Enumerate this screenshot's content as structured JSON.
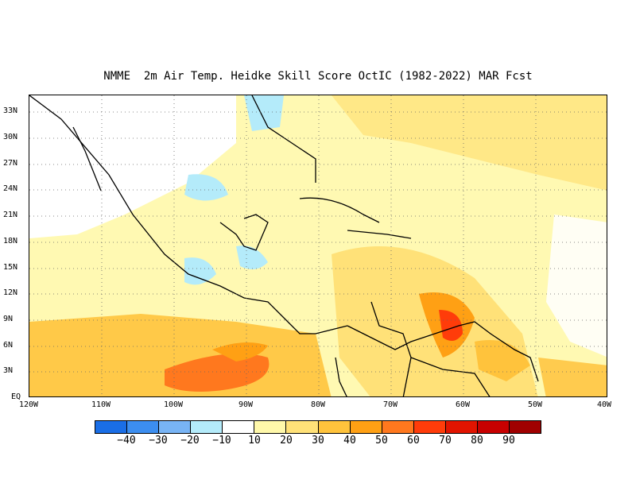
{
  "title": "NMME  2m Air Temp. Heidke Skill Score OctIC (1982-2022) MAR Fcst",
  "map": {
    "lat_labels": [
      "33N",
      "30N",
      "27N",
      "24N",
      "21N",
      "18N",
      "15N",
      "12N",
      "9N",
      "6N",
      "3N",
      "EQ"
    ],
    "lon_labels": [
      "120W",
      "110W",
      "100W",
      "90W",
      "80W",
      "70W",
      "60W",
      "50W",
      "40W"
    ],
    "extent": {
      "lon_min": -120,
      "lon_max": -40,
      "lat_min": 0,
      "lat_max": 35
    },
    "gridlines": "dotted",
    "field_regions": [
      {
        "name": "eastern-pacific-skill",
        "level": 40
      },
      {
        "name": "eastern-pacific-core",
        "level": 60
      },
      {
        "name": "caribbean-skill",
        "level": 30
      },
      {
        "name": "guianas-skill",
        "level": 50
      },
      {
        "name": "venezuela-core",
        "level": 70
      },
      {
        "name": "gulf-mexico-low",
        "level": -10
      },
      {
        "name": "atlantic-skill",
        "level": 20
      },
      {
        "name": "equatorial-atlantic-skill",
        "level": 30
      }
    ]
  },
  "colorbar": {
    "labels": [
      "−40",
      "−30",
      "−20",
      "−10",
      "10",
      "20",
      "30",
      "40",
      "50",
      "60",
      "70",
      "80",
      "90"
    ],
    "colors": [
      "#1a6ee6",
      "#3c8ef0",
      "#78b4f5",
      "#b4ebfa",
      "#ffffff",
      "#fff8aa",
      "#ffe178",
      "#ffc33c",
      "#ffa014",
      "#ff781e",
      "#ff3c0a",
      "#e11400",
      "#c80000",
      "#a00000"
    ]
  }
}
